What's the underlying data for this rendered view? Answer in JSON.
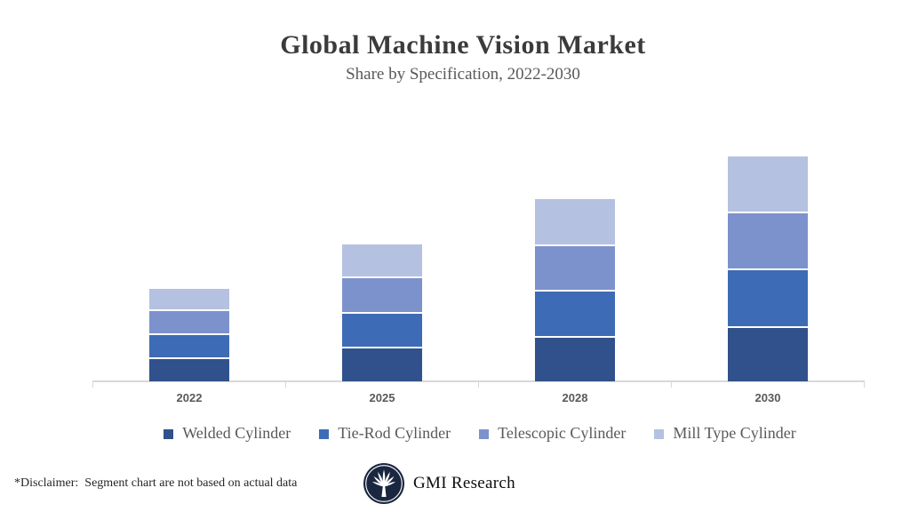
{
  "header": {
    "title": "Global Machine Vision Market",
    "subtitle": "Share by Specification,  2022-2030"
  },
  "chart_data": {
    "type": "bar",
    "stacked": true,
    "title": "Global Machine Vision Market",
    "subtitle": "Share by Specification, 2022-2030",
    "categories": [
      "2022",
      "2025",
      "2028",
      "2030"
    ],
    "series": [
      {
        "name": "Welded Cylinder",
        "color": "#30518C",
        "values": [
          25,
          37,
          49,
          60
        ]
      },
      {
        "name": "Tie-Rod Cylinder",
        "color": "#3E6BB5",
        "values": [
          25,
          37,
          50,
          63
        ]
      },
      {
        "name": "Telescopic Cylinder",
        "color": "#7C92CD",
        "values": [
          25,
          38,
          49,
          62
        ]
      },
      {
        "name": "Mill Type Cylinder",
        "color": "#B4C1E1",
        "values": [
          23,
          36,
          51,
          62
        ]
      }
    ],
    "value_axis_visible": false,
    "value_units": "relative share (no axis shown; values estimated, 1 unit per px)",
    "ylim": [
      0,
      280
    ],
    "grid": false,
    "legend_position": "bottom",
    "axis_color": "#d8d8d8",
    "label_color": "#595959",
    "segment_gap_color": "#ffffff"
  },
  "footer": {
    "disclaimer": "*Disclaimer:  Segment chart are not based on actual data",
    "logo": {
      "icon": "palm-tree-icon",
      "text": "GMI Research",
      "circle_color": "#1B2740"
    }
  }
}
